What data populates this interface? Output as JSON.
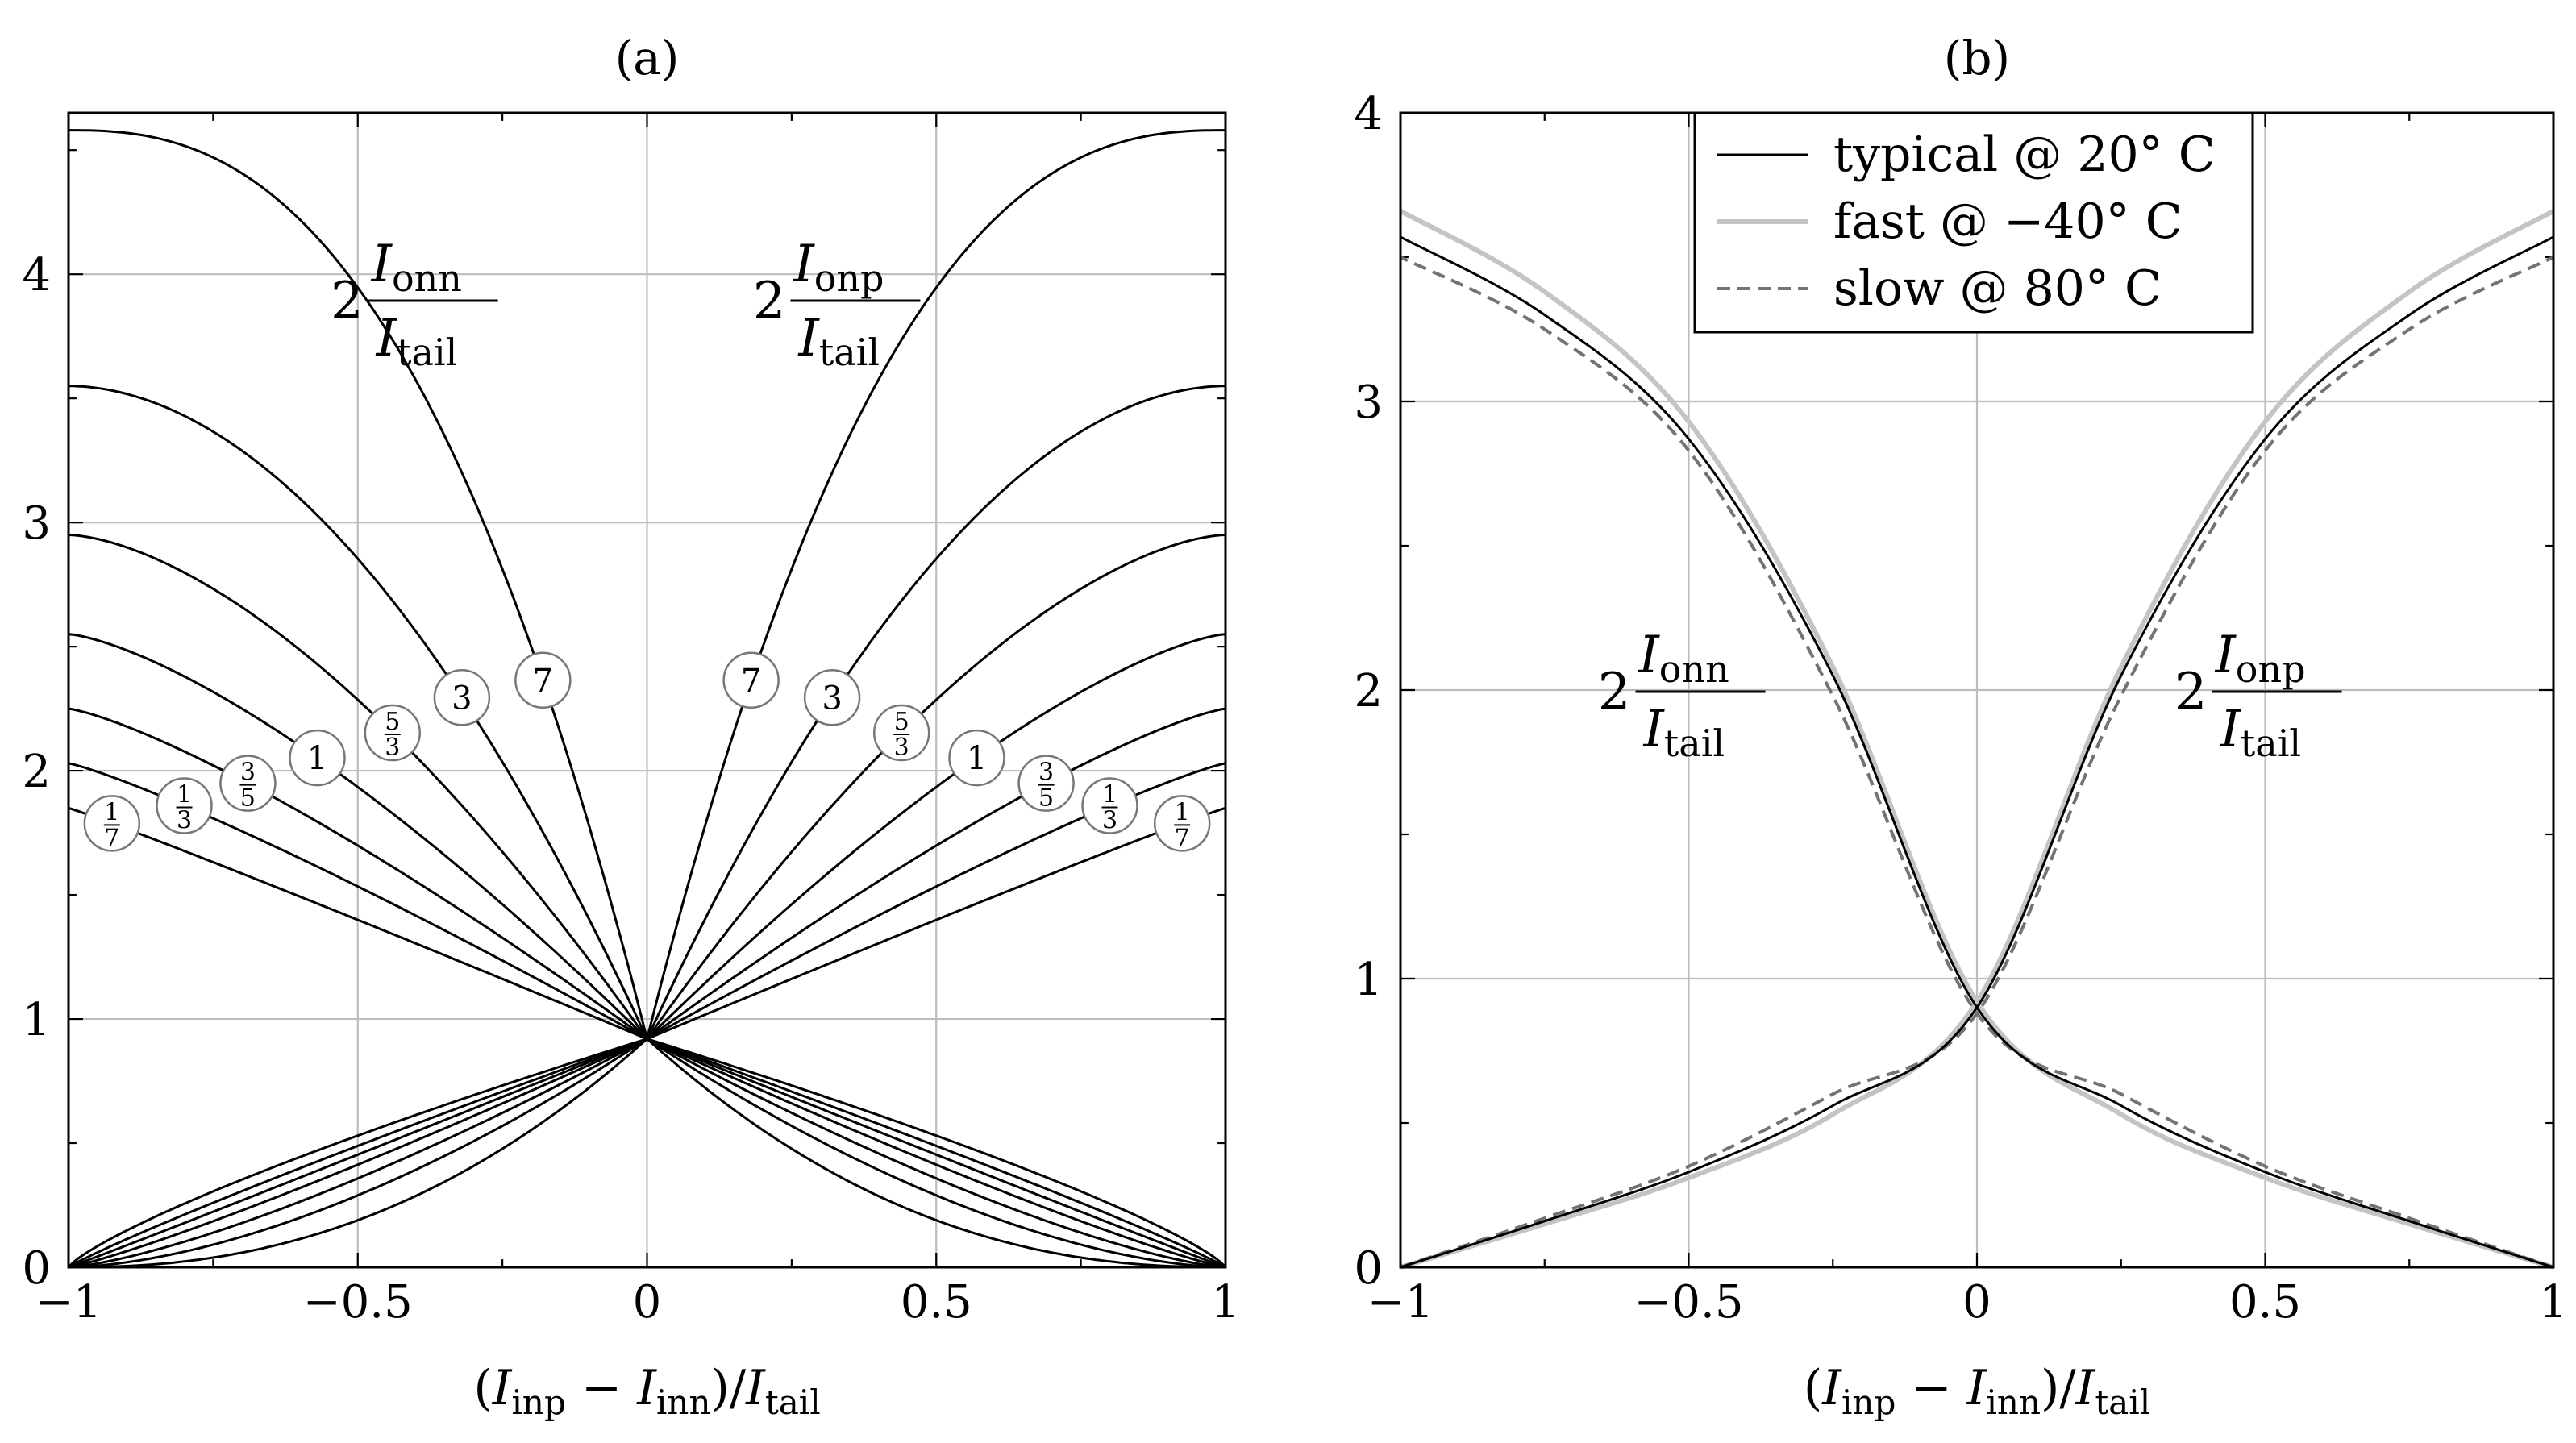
{
  "chart_data": [
    {
      "id": "a",
      "type": "line",
      "title": "(a)",
      "xlabel": "(I_inp − I_inn)/I_tail",
      "xlabel_parts": {
        "open": "(",
        "i1": "I",
        "s1": "inp",
        "minus": " − ",
        "i2": "I",
        "s2": "inn",
        "close": ")/",
        "i3": "I",
        "s3": "tail"
      },
      "ylabel": "",
      "xlim": [
        -1,
        1
      ],
      "ylim": [
        0,
        4.65
      ],
      "xticks": [
        -1,
        -0.5,
        0,
        0.5,
        1
      ],
      "xtick_labels": [
        "−1",
        "−0.5",
        "0",
        "0.5",
        "1"
      ],
      "yticks": [
        0,
        1,
        2,
        3,
        4
      ],
      "ytick_labels": [
        "0",
        "1",
        "2",
        "3",
        "4"
      ],
      "grid": true,
      "center_value": 0.92,
      "series": [
        {
          "name": "1/7",
          "edge_value": 1.85,
          "label_x": 0.925
        },
        {
          "name": "1/3",
          "edge_value": 2.03,
          "label_x": 0.8
        },
        {
          "name": "3/5",
          "edge_value": 2.25,
          "label_x": 0.69
        },
        {
          "name": "1",
          "edge_value": 2.55,
          "label_x": 0.57
        },
        {
          "name": "5/3",
          "edge_value": 2.95,
          "label_x": 0.44
        },
        {
          "name": "3",
          "edge_value": 3.55,
          "label_x": 0.32
        },
        {
          "name": "7",
          "edge_value": 4.58,
          "label_x": 0.18
        }
      ],
      "annotations": [
        {
          "id": "onn",
          "coef": "2",
          "num": "I",
          "num_sub": "onn",
          "den": "I",
          "den_sub": "tail",
          "x": -0.39,
          "y": 3.9
        },
        {
          "id": "onp",
          "coef": "2",
          "num": "I",
          "num_sub": "onp",
          "den": "I",
          "den_sub": "tail",
          "x": 0.34,
          "y": 3.9
        }
      ]
    },
    {
      "id": "b",
      "type": "line",
      "title": "(b)",
      "xlabel": "(I_inp − I_inn)/I_tail",
      "xlabel_parts": {
        "open": "(",
        "i1": "I",
        "s1": "inp",
        "minus": " − ",
        "i2": "I",
        "s2": "inn",
        "close": ")/",
        "i3": "I",
        "s3": "tail"
      },
      "ylabel": "",
      "xlim": [
        -1,
        1
      ],
      "ylim": [
        0,
        4
      ],
      "xticks": [
        -1,
        -0.5,
        0,
        0.5,
        1
      ],
      "xtick_labels": [
        "−1",
        "−0.5",
        "0",
        "0.5",
        "1"
      ],
      "yticks": [
        0,
        1,
        2,
        3,
        4
      ],
      "ytick_labels": [
        "0",
        "1",
        "2",
        "3",
        "4"
      ],
      "grid": true,
      "legend": {
        "position": "top-center",
        "entries": [
          {
            "label": "typical @ 20° C",
            "color": "#000000",
            "dash": "solid"
          },
          {
            "label": "fast @ −40° C",
            "color": "#c4c4c4",
            "dash": "solid"
          },
          {
            "label": "slow @ 80° C",
            "color": "#737373",
            "dash": "dashed"
          }
        ]
      },
      "series": [
        {
          "name": "typical @ 20° C",
          "center_value": 0.9,
          "edge_value": 3.57,
          "color": "#000000",
          "dash": "solid",
          "x": [
            -1,
            -0.75,
            -0.5,
            -0.25,
            0,
            0.25,
            0.5,
            0.75,
            1
          ],
          "onp": [
            0.0,
            0.16,
            0.33,
            0.56,
            0.9,
            2.05,
            2.87,
            3.3,
            3.57
          ]
        },
        {
          "name": "fast @ −40° C",
          "center_value": 0.92,
          "edge_value": 3.66,
          "color": "#c4c4c4",
          "dash": "solid",
          "x": [
            -1,
            -0.75,
            -0.5,
            -0.25,
            0,
            0.25,
            0.5,
            0.75,
            1
          ],
          "onp": [
            0.0,
            0.15,
            0.31,
            0.53,
            0.92,
            2.08,
            2.93,
            3.38,
            3.66
          ]
        },
        {
          "name": "slow @ 80° C",
          "center_value": 0.88,
          "edge_value": 3.5,
          "color": "#737373",
          "dash": "dashed",
          "x": [
            -1,
            -0.75,
            -0.5,
            -0.25,
            0,
            0.25,
            0.5,
            0.75,
            1
          ],
          "onp": [
            0.0,
            0.17,
            0.35,
            0.6,
            0.88,
            1.98,
            2.83,
            3.25,
            3.5
          ]
        }
      ],
      "annotations": [
        {
          "id": "onn",
          "coef": "2",
          "num": "I",
          "num_sub": "onn",
          "den": "I",
          "den_sub": "tail",
          "x": -0.5,
          "y": 2.0
        },
        {
          "id": "onp",
          "coef": "2",
          "num": "I",
          "num_sub": "onp",
          "den": "I",
          "den_sub": "tail",
          "x": 0.5,
          "y": 2.0
        }
      ]
    }
  ]
}
